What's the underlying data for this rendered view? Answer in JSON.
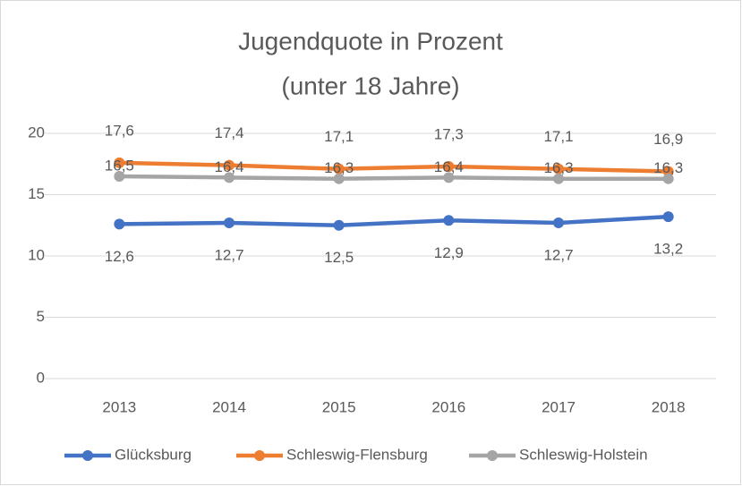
{
  "chart_data": {
    "type": "line",
    "title": [
      "Jugendquote in Prozent",
      "(unter 18 Jahre)"
    ],
    "categories": [
      "2013",
      "2014",
      "2015",
      "2016",
      "2017",
      "2018"
    ],
    "series": [
      {
        "name": "Glücksburg",
        "color": "#4472c4",
        "values": [
          12.6,
          12.7,
          12.5,
          12.9,
          12.7,
          13.2
        ],
        "value_labels": [
          "12,6",
          "12,7",
          "12,5",
          "12,9",
          "12,7",
          "13,2"
        ]
      },
      {
        "name": "Schleswig-Flensburg",
        "color": "#ed7d31",
        "values": [
          17.6,
          17.4,
          17.1,
          17.3,
          17.1,
          16.9
        ],
        "value_labels": [
          "17,6",
          "17,4",
          "17,1",
          "17,3",
          "17,1",
          "16,9"
        ]
      },
      {
        "name": "Schleswig-Holstein",
        "color": "#a5a5a5",
        "values": [
          16.5,
          16.4,
          16.3,
          16.4,
          16.3,
          16.3
        ],
        "value_labels": [
          "16,5",
          "16,4",
          "16,3",
          "16,4",
          "16,3",
          "16,3"
        ]
      }
    ],
    "ylim": [
      0,
      20
    ],
    "yticks": [
      0,
      5,
      10,
      15,
      20
    ],
    "grid": true,
    "legend": "bottom"
  }
}
